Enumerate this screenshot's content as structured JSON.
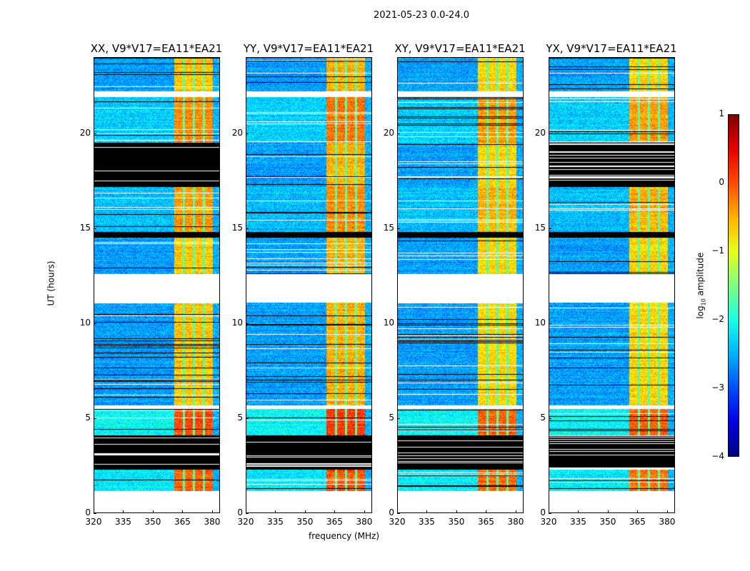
{
  "chart_data": {
    "type": "heatmap",
    "title": "2021-05-23 0.0-24.0",
    "xlabel": "frequency (MHz)",
    "ylabel": "UT (hours)",
    "xlim": [
      320,
      384
    ],
    "ylim": [
      0,
      24
    ],
    "xticks": [
      "320",
      "335",
      "350",
      "365",
      "380"
    ],
    "xtick_values": [
      320,
      335,
      350,
      365,
      380
    ],
    "yticks": [
      "0",
      "5",
      "10",
      "15",
      "20"
    ],
    "ytick_values": [
      0,
      5,
      10,
      15,
      20
    ],
    "colorbar": {
      "label_prefix": "log",
      "label_sub": "10",
      "label_suffix": " amplitude",
      "range": [
        -4,
        1
      ],
      "ticks": [
        "1",
        "0",
        "−1",
        "−2",
        "−3",
        "−4"
      ],
      "tick_values": [
        1,
        0,
        -1,
        -2,
        -3,
        -4
      ],
      "colormap": "jet"
    },
    "frequency_structure": {
      "low_band_mhz": [
        320,
        360.5
      ],
      "low_level": -2.6,
      "high_band_mhz": [
        360.5,
        380
      ],
      "high_level": -0.6,
      "channel_edges_mhz": [
        365.5,
        370.5,
        375.5
      ],
      "edge_band_mhz": [
        380,
        384
      ],
      "edge_level": -2.5
    },
    "time_segments_hours": [
      {
        "range": [
          0,
          0.05
        ],
        "state": "flagged"
      },
      {
        "range": [
          0.05,
          1.2
        ],
        "state": "empty"
      },
      {
        "range": [
          1.2,
          2.3
        ],
        "state": "data",
        "level_offset": 0.5
      },
      {
        "range": [
          2.3,
          4.1
        ],
        "state": "flagged"
      },
      {
        "range": [
          4.1,
          5.5
        ],
        "state": "data",
        "level_offset": 0.6
      },
      {
        "range": [
          5.5,
          5.7
        ],
        "state": "empty"
      },
      {
        "range": [
          5.7,
          11.1
        ],
        "state": "data",
        "level_offset": 0
      },
      {
        "range": [
          11.1,
          12.6
        ],
        "state": "empty"
      },
      {
        "range": [
          12.6,
          14.5
        ],
        "state": "data",
        "level_offset": 0
      },
      {
        "range": [
          14.5,
          14.8
        ],
        "state": "flagged"
      },
      {
        "range": [
          14.8,
          17.2
        ],
        "state": "data",
        "level_offset": 0.2
      },
      {
        "range": [
          17.2,
          19.5
        ],
        "state": "flagged_xx_yx"
      },
      {
        "range": [
          19.5,
          21.9
        ],
        "state": "data",
        "level_offset": 0.3
      },
      {
        "range": [
          21.9,
          22.2
        ],
        "state": "empty"
      },
      {
        "range": [
          22.2,
          24
        ],
        "state": "data",
        "level_offset": 0
      }
    ],
    "panels": [
      {
        "title": "XX, V9*V17=EA11*EA21",
        "flag_17_19": true,
        "gain": 0
      },
      {
        "title": "YY, V9*V17=EA11*EA21",
        "flag_17_19": false,
        "gain": 0.1
      },
      {
        "title": "XY, V9*V17=EA11*EA21",
        "flag_17_19": false,
        "gain": -0.1
      },
      {
        "title": "YX, V9*V17=EA11*EA21",
        "flag_17_19": true,
        "gain": -0.1
      }
    ]
  }
}
